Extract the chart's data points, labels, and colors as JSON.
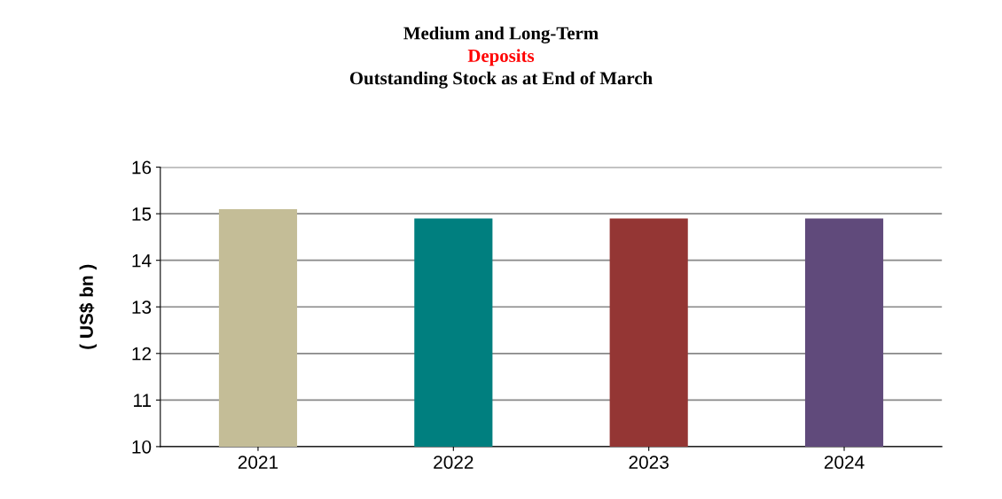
{
  "chart_data": {
    "type": "bar",
    "title": "Medium and Long-Term\nDeposits",
    "subtitle": "Outstanding Stock as at End of March",
    "ylabel": "( US$ bn )",
    "categories": [
      "2021",
      "2022",
      "2023",
      "2024"
    ],
    "values": [
      15.1,
      14.9,
      14.9,
      14.9
    ],
    "colors": [
      "#c4bd97",
      "#007f7f",
      "#943634",
      "#604a7b"
    ],
    "ylim": [
      10,
      16
    ],
    "yticks": [
      10,
      11,
      12,
      13,
      14,
      15,
      16
    ],
    "grid": "y",
    "legend": false
  }
}
